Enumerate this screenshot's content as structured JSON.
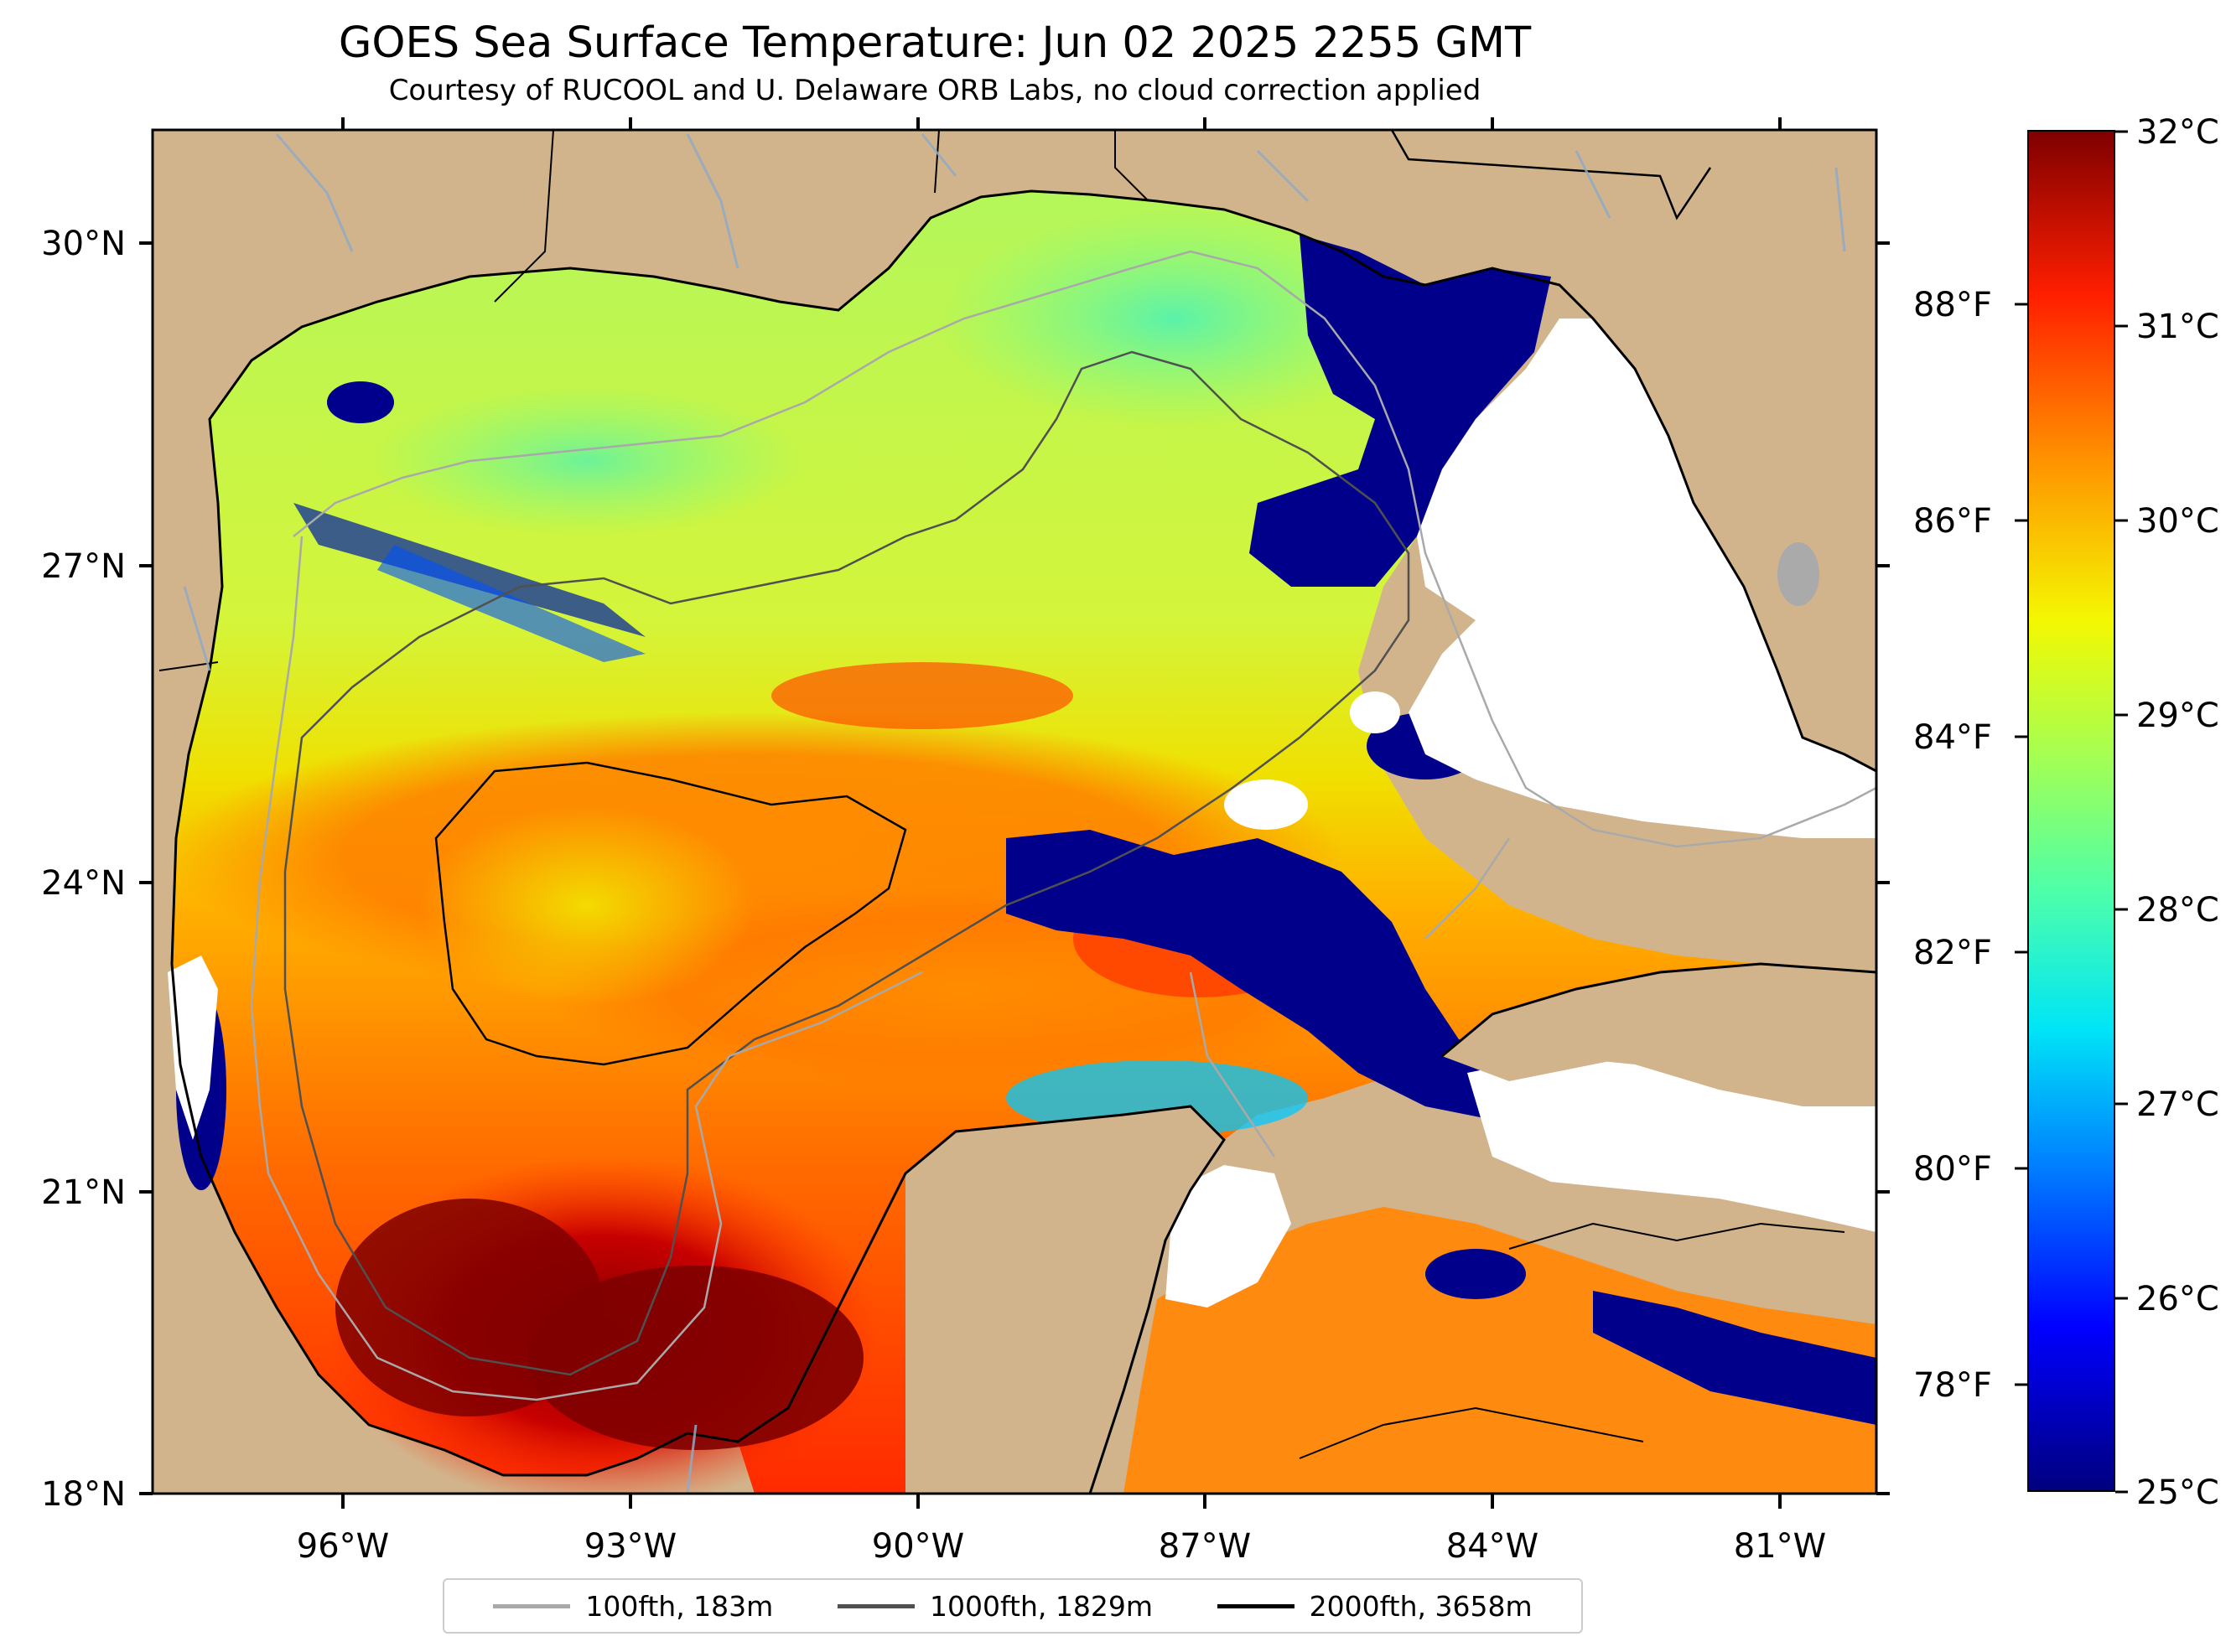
{
  "title": "GOES Sea Surface Temperature: Jun 02 2025 2255 GMT",
  "subtitle": "Courtesy of RUCOOL and U. Delaware ORB Labs, no cloud correction applied",
  "map": {
    "lon_ticks": [
      "96°W",
      "93°W",
      "90°W",
      "87°W",
      "84°W",
      "81°W"
    ],
    "lat_ticks": [
      "30°N",
      "27°N",
      "24°N",
      "21°N",
      "18°N"
    ],
    "colors": {
      "land": "#d2b48c",
      "no_data": "#ffffff",
      "coastline": "#000000",
      "cloud_gray": "#aaaaaa"
    }
  },
  "colorbar": {
    "celsius_ticks": [
      "32°C",
      "31°C",
      "30°C",
      "29°C",
      "28°C",
      "27°C",
      "26°C",
      "25°C"
    ],
    "fahrenheit_ticks": [
      "88°F",
      "86°F",
      "84°F",
      "82°F",
      "80°F",
      "78°F"
    ],
    "range_c": [
      25,
      32
    ],
    "colormap": "jet"
  },
  "legend": {
    "placement": "bottom-center",
    "entries": [
      {
        "label": "100fth, 183m",
        "color": "#a9a9a9"
      },
      {
        "label": "1000fth, 1829m",
        "color": "#505050"
      },
      {
        "label": "2000fth, 3658m",
        "color": "#000000"
      }
    ]
  }
}
